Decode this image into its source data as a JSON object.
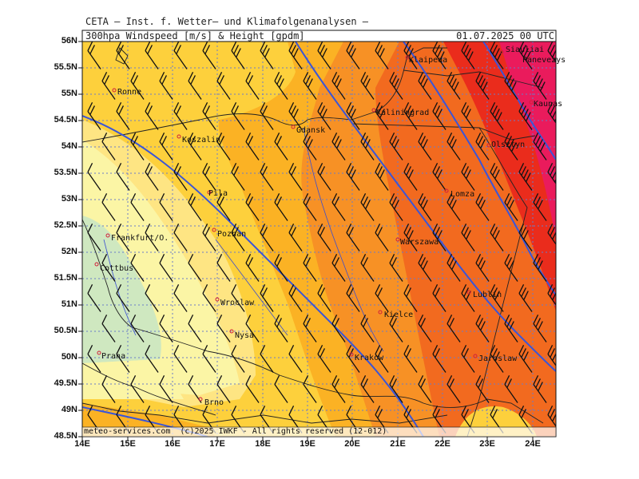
{
  "header": {
    "org_line": "CETA — Inst. f. Wetter— und Klimafolgenanalysen —",
    "product": "300hpa Windspeed [m/s] & Height [gpdm]",
    "valid_time": "01.07.2025 00 UTC"
  },
  "footer": {
    "credit": "meteo-services.com  (c)2025 IWKF - All rights reserved (12-012)"
  },
  "axes": {
    "lat_labels": [
      "56N",
      "55.5N",
      "55N",
      "54.5N",
      "54N",
      "53.5N",
      "53N",
      "52.5N",
      "52N",
      "51.5N",
      "51N",
      "50.5N",
      "50N",
      "49.5N",
      "49N",
      "48.5N"
    ],
    "lon_labels": [
      "14E",
      "15E",
      "16E",
      "17E",
      "18E",
      "19E",
      "20E",
      "21E",
      "22E",
      "23E",
      "24E"
    ]
  },
  "cities": [
    "Ronne",
    "Koszalin",
    "Gdansk",
    "Kaliningrad",
    "Klaipeda",
    "Siauliai",
    "Panevezys",
    "Kaunas",
    "Olsztyn",
    "Pila",
    "Lomza",
    "Frankfurt/O.",
    "Poznan",
    "Warszawa",
    "Cottbus",
    "Wroclaw",
    "Lublin",
    "Kielce",
    "Nysa",
    "Praha",
    "Krakow",
    "Jaroslaw",
    "Brno"
  ],
  "colors": {
    "speed_lt15": "#cfe8c0",
    "speed_15_20": "#fbf5a5",
    "speed_20_25": "#fee583",
    "speed_25_30": "#fdd03c",
    "speed_30_35": "#fbb224",
    "speed_35_40": "#f79125",
    "speed_40_45": "#f26a1f",
    "speed_45_50": "#ea2c1c",
    "speed_gt50": "#ea1b5c",
    "height_contour": "#3a55d8",
    "borders": "#222222",
    "rivers": "#3a4ed0"
  },
  "legend_icons": [
    "wind-barb-icon",
    "city-marker-icon"
  ]
}
